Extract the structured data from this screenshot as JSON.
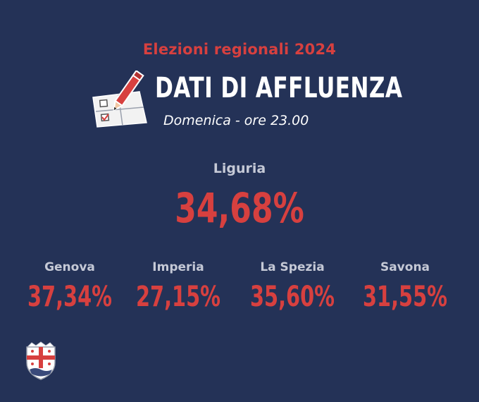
{
  "header": {
    "kicker": "Elezioni regionali 2024",
    "title": "DATI DI AFFLUENZA",
    "subtitle": "Domenica - ore 23.00"
  },
  "region": {
    "name": "Liguria",
    "turnout": "34,68%"
  },
  "provinces": [
    {
      "name": "Genova",
      "turnout": "37,34%"
    },
    {
      "name": "Imperia",
      "turnout": "27,15%"
    },
    {
      "name": "La Spezia",
      "turnout": "35,60%"
    },
    {
      "name": "Savona",
      "turnout": "31,55%"
    }
  ],
  "icons": {
    "ballot": "ballot-pencil-icon",
    "emblem": "liguria-emblem-icon"
  },
  "colors": {
    "background": "#243257",
    "accent_red": "#d7403f",
    "title_white": "#ffffff",
    "label_grey": "#c5c9d6"
  }
}
